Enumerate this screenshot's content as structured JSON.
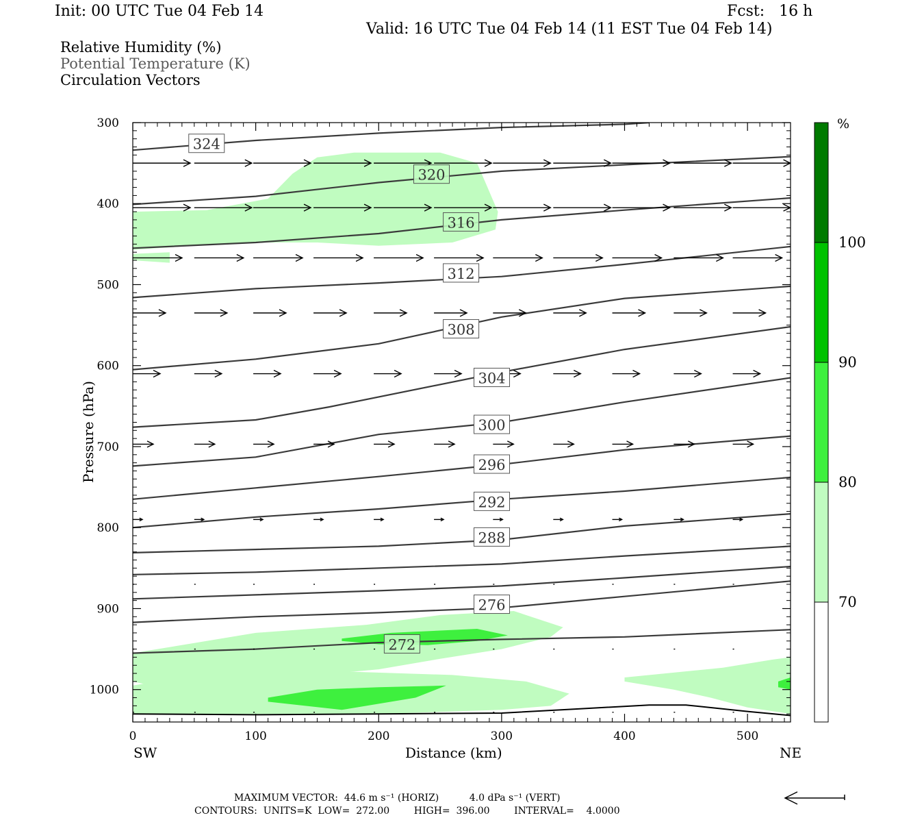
{
  "header": {
    "init": "Init: 00 UTC Tue 04 Feb 14",
    "fcst": "Fcst:   16 h",
    "valid": "Valid: 16 UTC Tue 04 Feb 14 (11 EST Tue 04 Feb 14)"
  },
  "legend": {
    "rh": "Relative Humidity (%)",
    "theta": "Potential Temperature (K)",
    "vectors": "Circulation Vectors"
  },
  "footer": {
    "max_vector": "MAXIMUM VECTOR:  44.6 m s⁻¹ (HORIZ)          4.0 dPa s⁻¹ (VERT)",
    "contours": "CONTOURS:  UNITS=K  LOW=  272.00        HIGH=  396.00        INTERVAL=    4.0000"
  },
  "chart_data": {
    "type": "cross-section",
    "xlabel": "Distance (km)",
    "ylabel": "Pressure (hPa)",
    "x_left_label": "SW",
    "x_right_label": "NE",
    "xlim": [
      0,
      535
    ],
    "ylim": [
      1040,
      300
    ],
    "xticks": [
      0,
      100,
      200,
      300,
      400,
      500
    ],
    "yticks": [
      300,
      400,
      500,
      600,
      700,
      800,
      900,
      1000
    ],
    "colorbar": {
      "unit": "%",
      "levels": [
        70,
        80,
        90,
        100
      ],
      "colors": [
        "#ffffff",
        "#c0fcc0",
        "#3ef03e",
        "#00c200",
        "#007a00"
      ]
    },
    "rh_fill_colors": {
      "light": "#c0fcc0",
      "medium": "#3ef03e"
    },
    "isentrope_color": "#3a3a3a",
    "isentropes": [
      {
        "value": 324,
        "label": "324",
        "label_at": [
          60,
          326
        ],
        "points": [
          [
            0,
            334
          ],
          [
            100,
            322
          ],
          [
            200,
            313
          ],
          [
            300,
            306
          ],
          [
            400,
            302
          ],
          [
            420,
            300
          ]
        ]
      },
      {
        "value": 320,
        "label": "320",
        "label_at": [
          243,
          364
        ],
        "points": [
          [
            0,
            401
          ],
          [
            100,
            391
          ],
          [
            200,
            374
          ],
          [
            300,
            360
          ],
          [
            400,
            352
          ],
          [
            535,
            342
          ]
        ]
      },
      {
        "value": 316,
        "label": "316",
        "label_at": [
          267,
          423
        ],
        "points": [
          [
            0,
            455
          ],
          [
            100,
            448
          ],
          [
            200,
            437
          ],
          [
            300,
            420
          ],
          [
            400,
            408
          ],
          [
            535,
            393
          ]
        ]
      },
      {
        "value": 312,
        "label": "312",
        "label_at": [
          267,
          486
        ],
        "points": [
          [
            0,
            516
          ],
          [
            100,
            505
          ],
          [
            200,
            498
          ],
          [
            300,
            490
          ],
          [
            400,
            475
          ],
          [
            535,
            453
          ]
        ]
      },
      {
        "value": 308,
        "label": "308",
        "label_at": [
          267,
          555
        ],
        "points": [
          [
            0,
            605
          ],
          [
            100,
            592
          ],
          [
            200,
            573
          ],
          [
            300,
            540
          ],
          [
            400,
            517
          ],
          [
            535,
            502
          ]
        ]
      },
      {
        "value": 304,
        "label": "304",
        "label_at": [
          292,
          615
        ],
        "points": [
          [
            0,
            676
          ],
          [
            100,
            667
          ],
          [
            160,
            651
          ],
          [
            300,
            608
          ],
          [
            400,
            580
          ],
          [
            535,
            552
          ]
        ]
      },
      {
        "value": 300,
        "label": "300",
        "label_at": [
          292,
          673
        ],
        "points": [
          [
            0,
            724
          ],
          [
            100,
            713
          ],
          [
            200,
            685
          ],
          [
            300,
            670
          ],
          [
            400,
            645
          ],
          [
            535,
            615
          ]
        ]
      },
      {
        "value": 296,
        "label": "296",
        "label_at": [
          292,
          722
        ],
        "points": [
          [
            0,
            765
          ],
          [
            100,
            751
          ],
          [
            200,
            737
          ],
          [
            300,
            722
          ],
          [
            400,
            704
          ],
          [
            535,
            687
          ]
        ]
      },
      {
        "value": 292,
        "label": "292",
        "label_at": [
          292,
          768
        ],
        "points": [
          [
            0,
            800
          ],
          [
            100,
            787
          ],
          [
            200,
            777
          ],
          [
            300,
            765
          ],
          [
            400,
            755
          ],
          [
            535,
            738
          ]
        ]
      },
      {
        "value": 288,
        "label": "288",
        "label_at": [
          292,
          812
        ],
        "points": [
          [
            0,
            831
          ],
          [
            100,
            827
          ],
          [
            200,
            823
          ],
          [
            300,
            815
          ],
          [
            400,
            798
          ],
          [
            535,
            783
          ]
        ]
      },
      {
        "value": 284,
        "label": "",
        "label_at": null,
        "points": [
          [
            0,
            858
          ],
          [
            100,
            855
          ],
          [
            200,
            850
          ],
          [
            300,
            845
          ],
          [
            400,
            835
          ],
          [
            535,
            823
          ]
        ]
      },
      {
        "value": 280,
        "label": "",
        "label_at": null,
        "points": [
          [
            0,
            888
          ],
          [
            100,
            883
          ],
          [
            200,
            878
          ],
          [
            300,
            872
          ],
          [
            400,
            862
          ],
          [
            535,
            848
          ]
        ]
      },
      {
        "value": 276,
        "label": "276",
        "label_at": [
          292,
          895
        ],
        "points": [
          [
            0,
            917
          ],
          [
            100,
            910
          ],
          [
            200,
            905
          ],
          [
            300,
            899
          ],
          [
            400,
            885
          ],
          [
            535,
            866
          ]
        ]
      },
      {
        "value": 272,
        "label": "272",
        "label_at": [
          219,
          944
        ],
        "points": [
          [
            0,
            955
          ],
          [
            100,
            950
          ],
          [
            200,
            942
          ],
          [
            300,
            938
          ],
          [
            400,
            935
          ],
          [
            535,
            926
          ]
        ]
      }
    ],
    "surface": {
      "points": [
        [
          0,
          1030
        ],
        [
          100,
          1031
        ],
        [
          200,
          1030
        ],
        [
          300,
          1029
        ],
        [
          360,
          1024
        ],
        [
          420,
          1019
        ],
        [
          450,
          1019
        ],
        [
          500,
          1027
        ],
        [
          535,
          1032
        ]
      ]
    },
    "rh_regions": [
      {
        "level": "light",
        "points": [
          [
            0,
            410
          ],
          [
            60,
            408
          ],
          [
            110,
            394
          ],
          [
            130,
            363
          ],
          [
            150,
            343
          ],
          [
            180,
            337
          ],
          [
            250,
            337
          ],
          [
            280,
            350
          ],
          [
            288,
            378
          ],
          [
            297,
            410
          ],
          [
            295,
            432
          ],
          [
            260,
            448
          ],
          [
            200,
            452
          ],
          [
            150,
            448
          ],
          [
            100,
            448
          ],
          [
            50,
            452
          ],
          [
            0,
            457
          ]
        ]
      },
      {
        "level": "light",
        "points": [
          [
            0,
            462
          ],
          [
            30,
            460
          ],
          [
            30,
            473
          ],
          [
            0,
            470
          ]
        ]
      },
      {
        "level": "light",
        "points": [
          [
            0,
            955
          ],
          [
            60,
            940
          ],
          [
            100,
            930
          ],
          [
            190,
            920
          ],
          [
            250,
            908
          ],
          [
            310,
            903
          ],
          [
            350,
            923
          ],
          [
            340,
            935
          ],
          [
            300,
            950
          ],
          [
            250,
            962
          ],
          [
            200,
            975
          ],
          [
            150,
            982
          ],
          [
            90,
            990
          ],
          [
            30,
            1000
          ],
          [
            0,
            990
          ]
        ]
      },
      {
        "level": "medium",
        "points": [
          [
            170,
            937
          ],
          [
            210,
            930
          ],
          [
            280,
            925
          ],
          [
            305,
            933
          ],
          [
            280,
            940
          ],
          [
            240,
            945
          ],
          [
            200,
            944
          ],
          [
            170,
            940
          ]
        ]
      },
      {
        "level": "light",
        "points": [
          [
            0,
            995
          ],
          [
            40,
            985
          ],
          [
            100,
            980
          ],
          [
            180,
            978
          ],
          [
            260,
            982
          ],
          [
            320,
            990
          ],
          [
            355,
            1005
          ],
          [
            340,
            1020
          ],
          [
            300,
            1025
          ],
          [
            200,
            1030
          ],
          [
            100,
            1030
          ],
          [
            0,
            1030
          ]
        ]
      },
      {
        "level": "medium",
        "points": [
          [
            110,
            1010
          ],
          [
            150,
            1000
          ],
          [
            200,
            997
          ],
          [
            255,
            995
          ],
          [
            230,
            1010
          ],
          [
            170,
            1025
          ],
          [
            110,
            1015
          ]
        ]
      },
      {
        "level": "light",
        "points": [
          [
            400,
            985
          ],
          [
            480,
            973
          ],
          [
            520,
            963
          ],
          [
            535,
            960
          ],
          [
            535,
            1030
          ],
          [
            500,
            1022
          ],
          [
            470,
            1010
          ],
          [
            440,
            1000
          ],
          [
            400,
            990
          ]
        ]
      },
      {
        "level": "medium",
        "points": [
          [
            525,
            990
          ],
          [
            535,
            985
          ],
          [
            535,
            1000
          ],
          [
            525,
            997
          ]
        ]
      }
    ],
    "vectors": {
      "levels_hpa": [
        350,
        405,
        467,
        535,
        610,
        697,
        790,
        870,
        950,
        1028
      ],
      "x_km": [
        0,
        50,
        98,
        147,
        196,
        245,
        293,
        342,
        390,
        440,
        488,
        535
      ],
      "rows": [
        {
          "p": 350,
          "dx": 42,
          "dy": 0
        },
        {
          "p": 405,
          "dx": 42,
          "dy": 0
        },
        {
          "p": 467,
          "dx": 36,
          "dy": 0
        },
        {
          "p": 535,
          "dx": 24,
          "dy": 0
        },
        {
          "p": 610,
          "dx": 20,
          "dy": 0
        },
        {
          "p": 697,
          "dx": 15,
          "dy": 0
        },
        {
          "p": 790,
          "dx": 7,
          "dy": 0
        },
        {
          "p": 870,
          "dx": 1,
          "dy": 0
        },
        {
          "p": 950,
          "dx": 1,
          "dy": 0
        },
        {
          "p": 1028,
          "dx": 1,
          "dy": 0
        }
      ]
    }
  }
}
